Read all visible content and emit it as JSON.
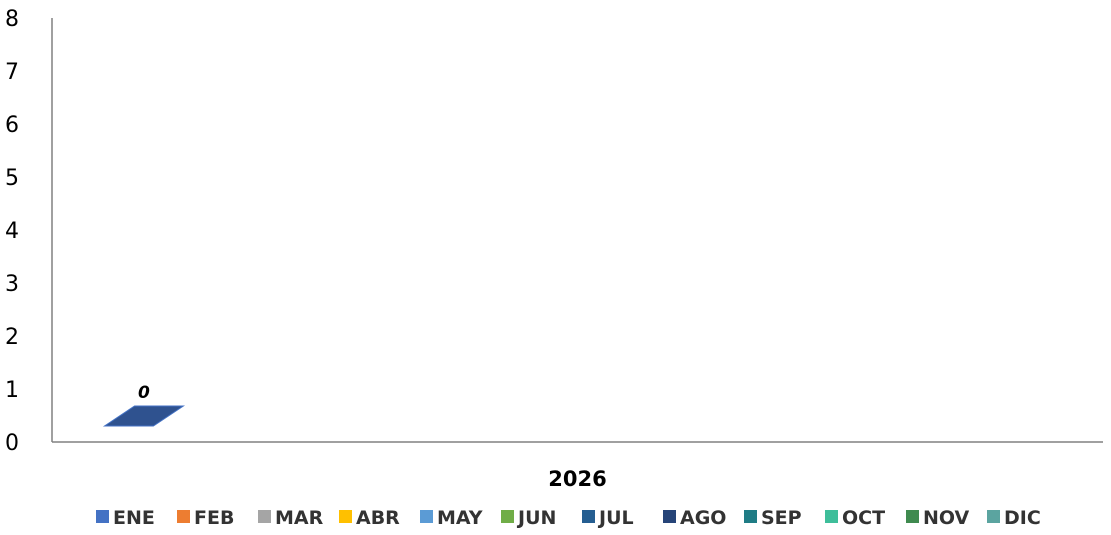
{
  "chart_data": {
    "type": "bar",
    "categories": [
      "2026"
    ],
    "ylim": [
      0,
      8
    ],
    "yticks": [
      0,
      1,
      2,
      3,
      4,
      5,
      6,
      7,
      8
    ],
    "grid": false,
    "legend_position": "bottom",
    "series": [
      {
        "name": "ENE",
        "values": [
          0
        ],
        "color": "#4472C4",
        "data_labels": [
          "0"
        ]
      },
      {
        "name": "FEB",
        "values": [
          null
        ],
        "color": "#ED7D31"
      },
      {
        "name": "MAR",
        "values": [
          null
        ],
        "color": "#A5A5A5"
      },
      {
        "name": "ABR",
        "values": [
          null
        ],
        "color": "#FFC000"
      },
      {
        "name": "MAY",
        "values": [
          null
        ],
        "color": "#5B9BD5"
      },
      {
        "name": "JUN",
        "values": [
          null
        ],
        "color": "#70AD47"
      },
      {
        "name": "JUL",
        "values": [
          null
        ],
        "color": "#255E91"
      },
      {
        "name": "AGO",
        "values": [
          null
        ],
        "color": "#264478"
      },
      {
        "name": "SEP",
        "values": [
          null
        ],
        "color": "#1F7C85"
      },
      {
        "name": "OCT",
        "values": [
          null
        ],
        "color": "#3EBE9A"
      },
      {
        "name": "NOV",
        "values": [
          null
        ],
        "color": "#3F8A4F"
      },
      {
        "name": "DIC",
        "values": [
          null
        ],
        "color": "#5BA4A0"
      }
    ],
    "bar_top_color": "#2F528F"
  }
}
